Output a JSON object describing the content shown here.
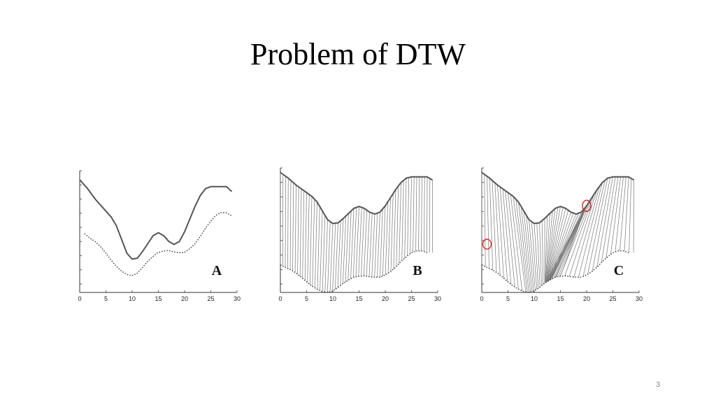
{
  "slide": {
    "title": "Problem of DTW",
    "page_number": "3"
  },
  "figure": {
    "x_ticks": [
      "0",
      "5",
      "10",
      "15",
      "20",
      "25",
      "30"
    ],
    "panels": [
      {
        "letter": "A",
        "mode": "overlay"
      },
      {
        "letter": "B",
        "mode": "alignment"
      },
      {
        "letter": "C",
        "mode": "alignment-singularity"
      }
    ],
    "highlight_color": "#e02020",
    "series": {
      "solid": [
        [
          0,
          0.95
        ],
        [
          1.5,
          0.86
        ],
        [
          3,
          0.75
        ],
        [
          4.5,
          0.66
        ],
        [
          6,
          0.57
        ],
        [
          7,
          0.48
        ],
        [
          8,
          0.34
        ],
        [
          9,
          0.2
        ],
        [
          10,
          0.14
        ],
        [
          11,
          0.15
        ],
        [
          12,
          0.22
        ],
        [
          13,
          0.3
        ],
        [
          14,
          0.38
        ],
        [
          15,
          0.41
        ],
        [
          16,
          0.38
        ],
        [
          17,
          0.32
        ],
        [
          18,
          0.29
        ],
        [
          19,
          0.32
        ],
        [
          20,
          0.42
        ],
        [
          21,
          0.55
        ],
        [
          22,
          0.68
        ],
        [
          23,
          0.79
        ],
        [
          24,
          0.86
        ],
        [
          25,
          0.88
        ],
        [
          26,
          0.88
        ],
        [
          27,
          0.88
        ],
        [
          28,
          0.88
        ],
        [
          29,
          0.83
        ]
      ],
      "dotted": [
        [
          0,
          0.6
        ],
        [
          1,
          0.54
        ],
        [
          2,
          0.49
        ],
        [
          3,
          0.42
        ],
        [
          4,
          0.33
        ],
        [
          5,
          0.23
        ],
        [
          6,
          0.14
        ],
        [
          7,
          0.07
        ],
        [
          8,
          0.02
        ],
        [
          9,
          0.0
        ],
        [
          10,
          0.03
        ],
        [
          11,
          0.11
        ],
        [
          12,
          0.2
        ],
        [
          13,
          0.27
        ],
        [
          14,
          0.33
        ],
        [
          15,
          0.35
        ],
        [
          16,
          0.36
        ],
        [
          17,
          0.34
        ],
        [
          18,
          0.33
        ],
        [
          19,
          0.33
        ],
        [
          20,
          0.38
        ],
        [
          21,
          0.45
        ],
        [
          22,
          0.55
        ],
        [
          23,
          0.67
        ],
        [
          24,
          0.77
        ],
        [
          25,
          0.86
        ],
        [
          26,
          0.9
        ],
        [
          27,
          0.9
        ],
        [
          28,
          0.86
        ]
      ]
    }
  }
}
